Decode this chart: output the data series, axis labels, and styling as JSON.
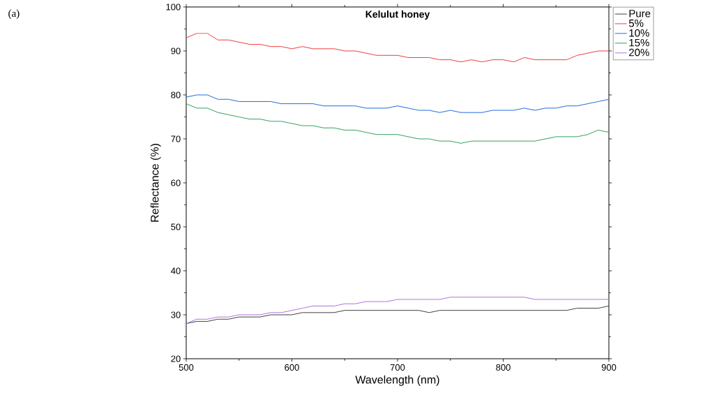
{
  "chart_data": {
    "type": "line",
    "title": "Kelulut honey",
    "xlabel": "Wavelength (nm)",
    "ylabel": "Reflectance (%)",
    "annotations": [
      "(a)"
    ],
    "x": [
      500,
      510,
      520,
      530,
      540,
      550,
      560,
      570,
      580,
      590,
      600,
      610,
      620,
      630,
      640,
      650,
      660,
      670,
      680,
      690,
      700,
      710,
      720,
      730,
      740,
      750,
      760,
      770,
      780,
      790,
      800,
      810,
      820,
      830,
      840,
      850,
      860,
      870,
      880,
      890,
      900
    ],
    "series": [
      {
        "name": "Pure",
        "color": "#404040",
        "values": [
          28,
          28.5,
          28.5,
          29,
          29,
          29.5,
          29.5,
          29.5,
          30,
          30,
          30,
          30.5,
          30.5,
          30.5,
          30.5,
          31,
          31,
          31,
          31,
          31,
          31,
          31,
          31,
          30.5,
          31,
          31,
          31,
          31,
          31,
          31,
          31,
          31,
          31,
          31,
          31,
          31,
          31,
          31.5,
          31.5,
          31.5,
          32
        ]
      },
      {
        "name": "5%",
        "color": "#f03c3c",
        "values": [
          93,
          94,
          94,
          92.5,
          92.5,
          92,
          91.5,
          91.5,
          91,
          91,
          90.5,
          91,
          90.5,
          90.5,
          90.5,
          90,
          90,
          89.5,
          89,
          89,
          89,
          88.5,
          88.5,
          88.5,
          88,
          88,
          87.5,
          88,
          87.5,
          88,
          88,
          87.5,
          88.5,
          88,
          88,
          88,
          88,
          89,
          89.5,
          90,
          90
        ]
      },
      {
        "name": "10%",
        "color": "#1e6be0",
        "values": [
          79.5,
          80,
          80,
          79,
          79,
          78.5,
          78.5,
          78.5,
          78.5,
          78,
          78,
          78,
          78,
          77.5,
          77.5,
          77.5,
          77.5,
          77,
          77,
          77,
          77.5,
          77,
          76.5,
          76.5,
          76,
          76.5,
          76,
          76,
          76,
          76.5,
          76.5,
          76.5,
          77,
          76.5,
          77,
          77,
          77.5,
          77.5,
          78,
          78.5,
          79
        ]
      },
      {
        "name": "15%",
        "color": "#30a060",
        "values": [
          78,
          77,
          77,
          76,
          75.5,
          75,
          74.5,
          74.5,
          74,
          74,
          73.5,
          73,
          73,
          72.5,
          72.5,
          72,
          72,
          71.5,
          71,
          71,
          71,
          70.5,
          70,
          70,
          69.5,
          69.5,
          69,
          69.5,
          69.5,
          69.5,
          69.5,
          69.5,
          69.5,
          69.5,
          70,
          70.5,
          70.5,
          70.5,
          71,
          72,
          71.5
        ]
      },
      {
        "name": "20%",
        "color": "#b070e0",
        "values": [
          28,
          29,
          29,
          29.5,
          29.5,
          30,
          30,
          30,
          30.5,
          30.5,
          31,
          31.5,
          32,
          32,
          32,
          32.5,
          32.5,
          33,
          33,
          33,
          33.5,
          33.5,
          33.5,
          33.5,
          33.5,
          34,
          34,
          34,
          34,
          34,
          34,
          34,
          34,
          33.5,
          33.5,
          33.5,
          33.5,
          33.5,
          33.5,
          33.5,
          33.5
        ]
      }
    ],
    "xlim": [
      500,
      900
    ],
    "ylim": [
      20,
      100
    ],
    "xticks": [
      500,
      600,
      700,
      800,
      900
    ],
    "yticks": [
      20,
      30,
      40,
      50,
      60,
      70,
      80,
      90,
      100
    ],
    "grid": false,
    "legend": "top right",
    "marker": "none",
    "line_style": "solid"
  }
}
